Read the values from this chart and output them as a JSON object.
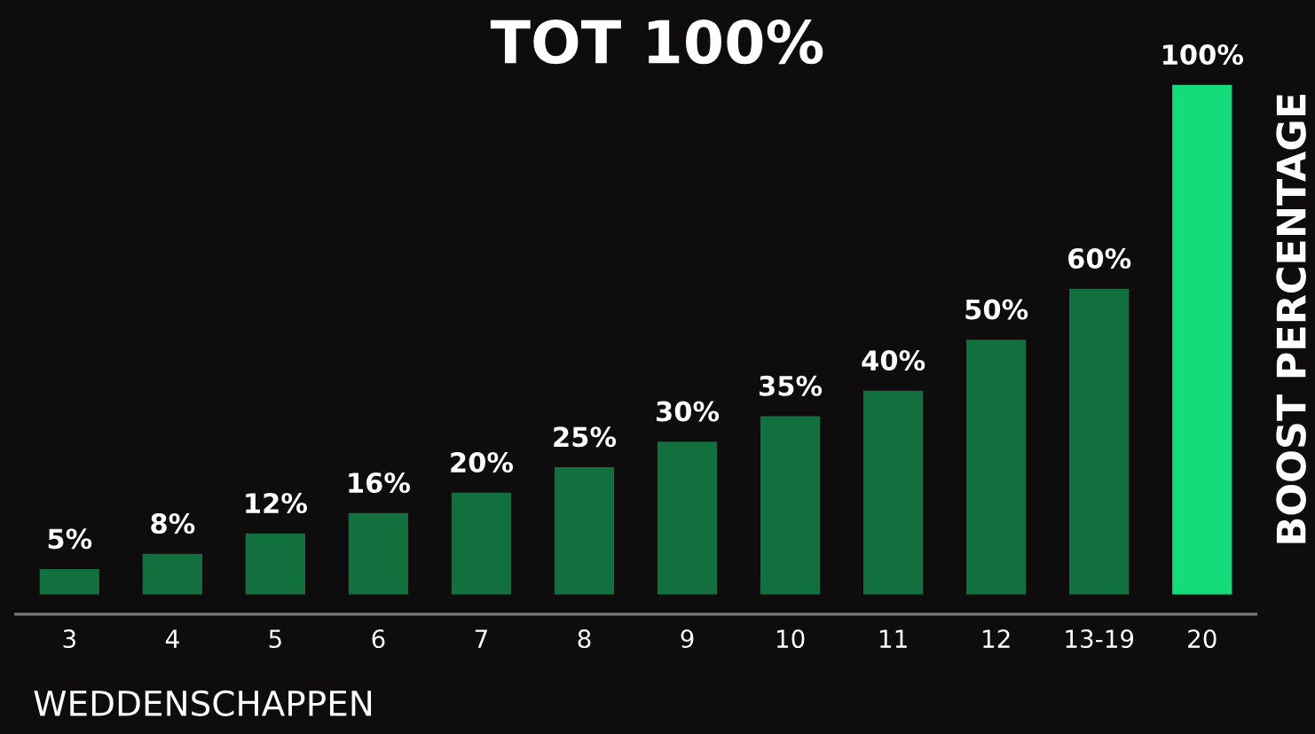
{
  "chart_data": {
    "type": "bar",
    "title": "TOT 100%",
    "xlabel": "WEDDENSCHAPPEN",
    "ylabel": "BOOST PERCENTAGE",
    "categories": [
      "3",
      "4",
      "5",
      "6",
      "7",
      "8",
      "9",
      "10",
      "11",
      "12",
      "13-19",
      "20"
    ],
    "values": [
      5,
      8,
      12,
      16,
      20,
      25,
      30,
      35,
      40,
      50,
      60,
      100
    ],
    "colors": [
      "#12703f",
      "#12703f",
      "#12703f",
      "#12703f",
      "#12703f",
      "#12703f",
      "#12703f",
      "#12703f",
      "#12703f",
      "#12703f",
      "#12703f",
      "#16db7a"
    ],
    "value_labels": [
      "5%",
      "8%",
      "12%",
      "16%",
      "20%",
      "25%",
      "30%",
      "35%",
      "40%",
      "50%",
      "60%",
      "100%"
    ],
    "tick_labels": "x",
    "grid": false,
    "legend": false
  }
}
